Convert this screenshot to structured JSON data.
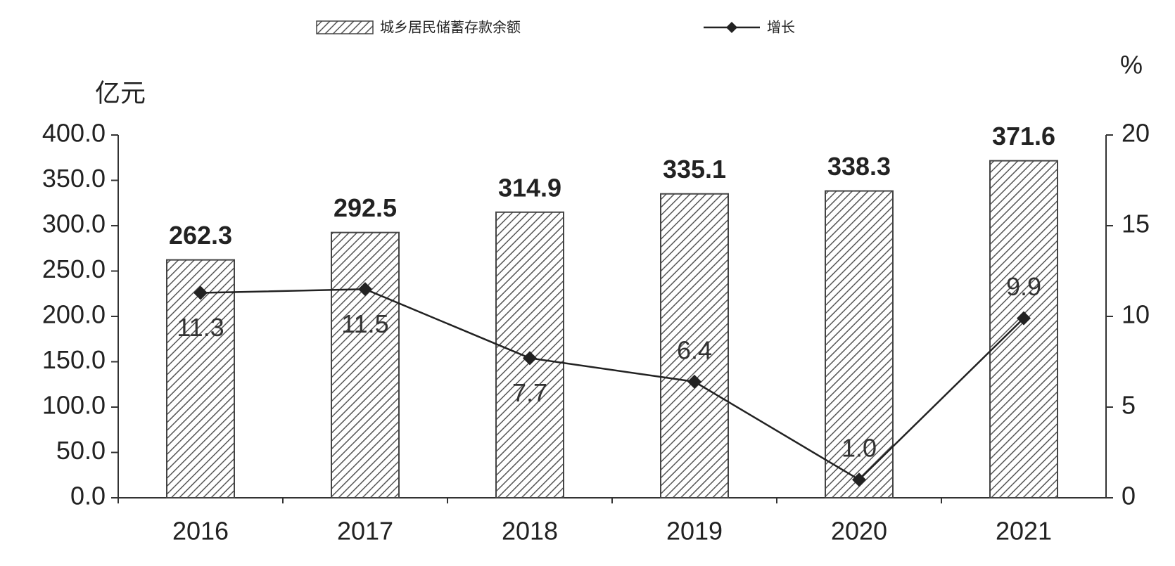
{
  "chart_data": {
    "type": "bar-line",
    "categories": [
      "2016",
      "2017",
      "2018",
      "2019",
      "2020",
      "2021"
    ],
    "series": [
      {
        "name": "城乡居民储蓄存款余额",
        "type": "bar",
        "color": "#444444",
        "values": [
          262.3,
          292.5,
          314.9,
          335.1,
          338.3,
          371.6
        ],
        "value_labels": [
          "262.3",
          "292.5",
          "314.9",
          "335.1",
          "338.3",
          "371.6"
        ]
      },
      {
        "name": "增长",
        "type": "line",
        "axis": "y2",
        "color": "#222222",
        "values": [
          11.3,
          11.5,
          7.7,
          6.4,
          1.0,
          9.9
        ],
        "value_labels": [
          "11.3",
          "11.5",
          "7.7",
          "6.4",
          "1.0",
          "9.9"
        ]
      }
    ],
    "y_label": "亿元",
    "y2_label": "%",
    "ylim": [
      0,
      400
    ],
    "yticks": [
      {
        "value": 0,
        "label": "0.0"
      },
      {
        "value": 50,
        "label": "50.0"
      },
      {
        "value": 100,
        "label": "100.0"
      },
      {
        "value": 150,
        "label": "150.0"
      },
      {
        "value": 200,
        "label": "200.0"
      },
      {
        "value": 250,
        "label": "250.0"
      },
      {
        "value": 300,
        "label": "300.0"
      },
      {
        "value": 350,
        "label": "350.0"
      },
      {
        "value": 400,
        "label": "400.0"
      }
    ],
    "y2lim": [
      0,
      20
    ],
    "y2ticks": [
      0,
      5,
      10,
      15,
      20
    ],
    "legend": "top"
  }
}
